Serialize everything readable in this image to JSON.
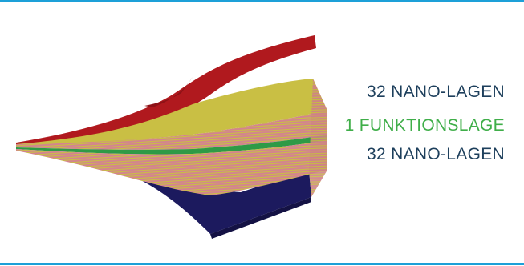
{
  "labels": {
    "top": "32 NANO-LAGEN",
    "middle": "1 FUNKTIONSLAGE",
    "bottom": "32 NANO-LAGEN"
  },
  "colors": {
    "rule": "#1da0d8",
    "label_primary": "#1d3f5c",
    "label_accent": "#3fae49",
    "top_sheet": "#b0191e",
    "bottom_sheet": "#1c1a5e",
    "layer_pink": "#d3848f",
    "layer_yellow": "#c9bf44",
    "functional_layer": "#2f9a46"
  }
}
